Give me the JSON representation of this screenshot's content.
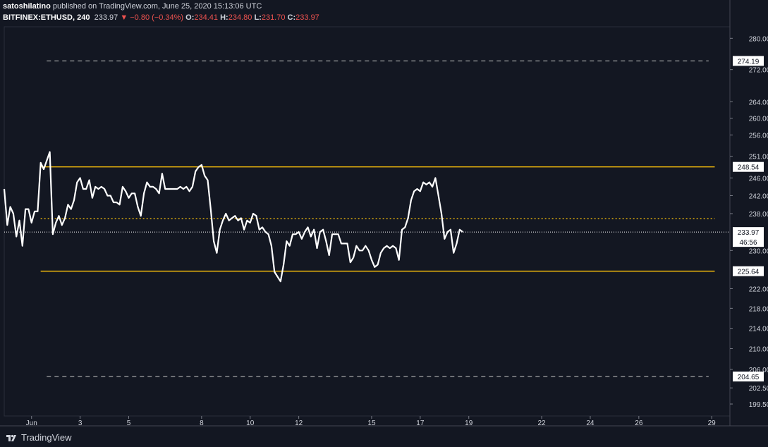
{
  "header": {
    "author": "satoshilatino",
    "published_text": "published on TradingView.com, June 25, 2020 15:13:06 UTC",
    "symbol": "BITFINEX:ETHUSD, 240",
    "last": "233.97",
    "change": "▼ −0.80 (−0.34%)",
    "o_label": "O:",
    "o": "234.41",
    "h_label": "H:",
    "h": "234.80",
    "l_label": "L:",
    "l": "231.70",
    "c_label": "C:",
    "c": "233.97"
  },
  "footer": {
    "brand": "TradingView"
  },
  "colors": {
    "background": "#131722",
    "line": "#ffffff",
    "level": "#f0b90b",
    "dashed": "#c8c8c8",
    "text": "#d1d4dc"
  },
  "chart_data": {
    "type": "line",
    "series": [
      {
        "values": [
          243.5,
          235.5,
          239.5,
          238.0,
          233.0,
          236.5,
          231.0,
          239.0,
          239.0,
          236.0,
          238.5,
          238.5,
          249.5,
          248.0,
          250.0,
          252.0,
          233.5,
          236.0,
          237.5,
          235.5,
          237.0,
          240.0,
          239.0,
          241.0,
          245.0,
          246.0,
          243.5,
          243.5,
          245.5,
          241.5,
          244.0,
          243.5,
          244.0,
          243.5,
          242.0,
          242.0,
          240.5,
          240.5,
          240.0,
          244.0,
          243.0,
          241.5,
          242.5,
          242.5,
          239.5,
          237.5,
          242.5,
          245.0,
          244.0,
          244.0,
          243.5,
          242.5,
          247.0,
          243.5,
          243.5,
          243.5,
          243.5,
          243.5,
          244.0,
          243.5,
          244.0,
          243.0,
          244.0,
          247.5,
          248.5,
          249.0,
          246.5,
          245.5,
          239.0,
          232.0,
          229.5,
          234.5,
          236.5,
          238.0,
          236.5,
          237.0,
          237.5,
          236.5,
          237.0,
          234.5,
          236.5,
          236.0,
          238.0,
          237.5,
          234.5,
          235.0,
          234.0,
          233.5,
          231.0,
          225.5,
          224.5,
          223.5,
          227.0,
          232.0,
          231.0,
          233.5,
          233.5,
          234.0,
          232.5,
          234.0,
          235.0,
          233.0,
          234.5,
          230.5,
          234.0,
          234.5,
          232.0,
          229.0,
          233.5,
          233.5,
          233.5,
          231.5,
          231.5,
          231.5,
          227.5,
          228.5,
          231.0,
          230.0,
          230.0,
          231.0,
          230.0,
          228.0,
          226.5,
          227.0,
          229.5,
          230.5,
          231.0,
          230.5,
          231.0,
          230.5,
          228.0,
          234.5,
          235.0,
          237.0,
          241.0,
          243.0,
          243.5,
          243.0,
          245.0,
          244.5,
          245.0,
          244.0,
          246.0,
          242.0,
          238.0,
          232.5,
          234.0,
          234.5,
          229.5,
          231.5,
          234.5,
          234.0
        ]
      }
    ],
    "x_ticks": [
      {
        "label": "Jun",
        "index": 9
      },
      {
        "label": "3",
        "index": 25
      },
      {
        "label": "5",
        "index": 41
      },
      {
        "label": "8",
        "index": 65
      },
      {
        "label": "10",
        "index": 81
      },
      {
        "label": "12",
        "index": 97
      },
      {
        "label": "15",
        "index": 121
      },
      {
        "label": "17",
        "index": 137
      },
      {
        "label": "19",
        "index": 153
      },
      {
        "label": "22",
        "index": 177
      },
      {
        "label": "24",
        "index": 193
      },
      {
        "label": "26",
        "index": 209
      },
      {
        "label": "29",
        "index": 233
      }
    ],
    "x_count": 240,
    "y_ticks": [
      "280.00",
      "272.00",
      "264.00",
      "260.00",
      "256.00",
      "251.00",
      "246.00",
      "242.00",
      "238.00",
      "230.00",
      "222.00",
      "218.00",
      "214.00",
      "210.00",
      "206.00",
      "202.50",
      "199.50"
    ],
    "y_range": [
      197.3,
      283.0
    ],
    "log_scale": true,
    "levels": [
      {
        "value": 274.19,
        "label": "274.19",
        "style": "dashed"
      },
      {
        "value": 248.54,
        "label": "248.54",
        "style": "solid"
      },
      {
        "value": 236.9,
        "label": "",
        "style": "dotted"
      },
      {
        "value": 225.64,
        "label": "225.64",
        "style": "solid"
      },
      {
        "value": 204.65,
        "label": "204.65",
        "style": "dashed"
      }
    ],
    "current_price": {
      "value": 233.97,
      "label": "233.97",
      "countdown": "46:56"
    }
  }
}
